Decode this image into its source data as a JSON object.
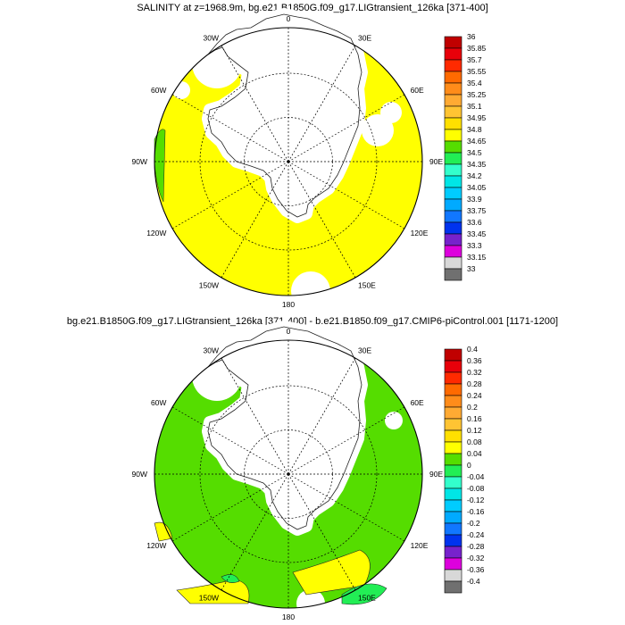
{
  "maps": [
    {
      "id": "top",
      "title": "SALINITY at z=1968.9m, bg.e21.B1850G.f09_g17.LIGtransient_126ka [371-400]",
      "lon_labels": [
        "0",
        "30E",
        "60E",
        "90E",
        "120E",
        "150E",
        "180",
        "150W",
        "120W",
        "90W",
        "60W",
        "30W"
      ],
      "field_color": "#ffff00",
      "colorbar": {
        "labels": [
          "36",
          "35.85",
          "35.7",
          "35.55",
          "35.4",
          "35.25",
          "35.1",
          "34.95",
          "34.8",
          "34.65",
          "34.5",
          "34.35",
          "34.2",
          "34.05",
          "33.9",
          "33.75",
          "33.6",
          "33.45",
          "33.3",
          "33.15",
          "33"
        ],
        "colors": [
          "#c00000",
          "#e8000a",
          "#ff2a00",
          "#ff6a00",
          "#ff8c1a",
          "#ffaa33",
          "#ffc433",
          "#ffe000",
          "#ffff00",
          "#55dd00",
          "#22ee55",
          "#33ffcc",
          "#00e6e6",
          "#00ccff",
          "#00aaff",
          "#1177ff",
          "#0033ee",
          "#7722cc",
          "#dd00dd",
          "#d8d8d8",
          "#707070"
        ]
      }
    },
    {
      "id": "bottom",
      "title": "bg.e21.B1850G.f09_g17.LIGtransient_126ka [371-400] - b.e21.B1850.f09_g17.CMIP6-piControl.001 [1171-1200]",
      "lon_labels": [
        "0",
        "30E",
        "60E",
        "90E",
        "120E",
        "150E",
        "180",
        "150W",
        "120W",
        "90W",
        "60W",
        "30W"
      ],
      "field_color": "#55dd00",
      "colorbar": {
        "labels": [
          "0.4",
          "0.36",
          "0.32",
          "0.28",
          "0.24",
          "0.2",
          "0.16",
          "0.12",
          "0.08",
          "0.04",
          "0",
          "-0.04",
          "-0.08",
          "-0.12",
          "-0.16",
          "-0.2",
          "-0.24",
          "-0.28",
          "-0.32",
          "-0.36",
          "-0.4"
        ],
        "colors": [
          "#c00000",
          "#e8000a",
          "#ff2a00",
          "#ff6a00",
          "#ff8c1a",
          "#ffaa33",
          "#ffc433",
          "#ffe000",
          "#ffff00",
          "#55dd00",
          "#22ee55",
          "#33ffcc",
          "#00e6e6",
          "#00ccff",
          "#00aaff",
          "#1177ff",
          "#0033ee",
          "#7722cc",
          "#dd00dd",
          "#d8d8d8",
          "#707070"
        ]
      }
    }
  ]
}
